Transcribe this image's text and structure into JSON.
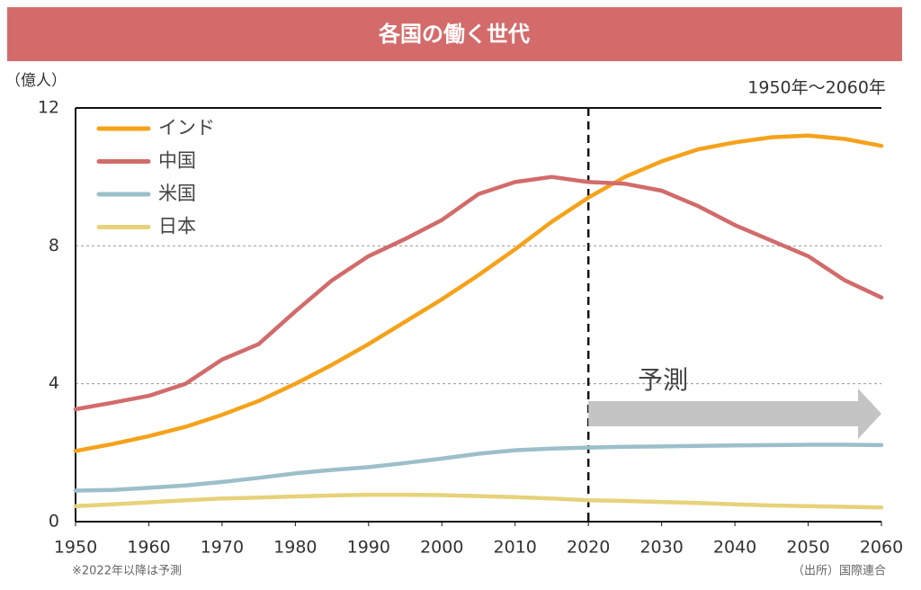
{
  "chart_data": {
    "type": "line",
    "title": "各国の働く世代",
    "subtitle": "1950年〜2060年",
    "y_label": "（億人）",
    "note": "※2022年以降は予測",
    "source": "（出所）国際連合",
    "x": [
      1950,
      1955,
      1960,
      1965,
      1970,
      1975,
      1980,
      1985,
      1990,
      1995,
      2000,
      2005,
      2010,
      2015,
      2020,
      2025,
      2030,
      2035,
      2040,
      2045,
      2050,
      2055,
      2060
    ],
    "series": [
      {
        "name": "インド",
        "color": "#f5a21b",
        "values": [
          2.05,
          2.25,
          2.48,
          2.75,
          3.1,
          3.5,
          4.0,
          4.55,
          5.15,
          5.8,
          6.45,
          7.15,
          7.9,
          8.7,
          9.4,
          10.0,
          10.45,
          10.8,
          11.0,
          11.15,
          11.2,
          11.1,
          10.9
        ]
      },
      {
        "name": "中国",
        "color": "#d26b6b",
        "values": [
          3.26,
          3.45,
          3.65,
          4.0,
          4.7,
          5.15,
          6.1,
          7.0,
          7.7,
          8.2,
          8.75,
          9.5,
          9.85,
          10.0,
          9.85,
          9.8,
          9.6,
          9.15,
          8.6,
          8.15,
          7.7,
          7.0,
          6.5
        ]
      },
      {
        "name": "米国",
        "color": "#9cbfc9",
        "values": [
          0.9,
          0.92,
          0.98,
          1.05,
          1.15,
          1.27,
          1.4,
          1.5,
          1.58,
          1.7,
          1.83,
          1.97,
          2.07,
          2.12,
          2.15,
          2.17,
          2.18,
          2.2,
          2.21,
          2.22,
          2.23,
          2.23,
          2.22
        ]
      },
      {
        "name": "日本",
        "color": "#e6d27a",
        "values": [
          0.45,
          0.5,
          0.56,
          0.62,
          0.67,
          0.7,
          0.73,
          0.76,
          0.78,
          0.78,
          0.77,
          0.74,
          0.71,
          0.67,
          0.62,
          0.6,
          0.57,
          0.54,
          0.5,
          0.47,
          0.45,
          0.43,
          0.41
        ]
      }
    ],
    "forecast": {
      "label": "予測",
      "x": 2020
    },
    "xlim": [
      1950,
      2060
    ],
    "xticks": [
      1950,
      1960,
      1970,
      1980,
      1990,
      2000,
      2010,
      2020,
      2030,
      2040,
      2050,
      2060
    ],
    "ylim": [
      0,
      12
    ],
    "yticks": [
      0,
      4,
      8,
      12
    ],
    "grid": true,
    "legend": "top-left"
  }
}
